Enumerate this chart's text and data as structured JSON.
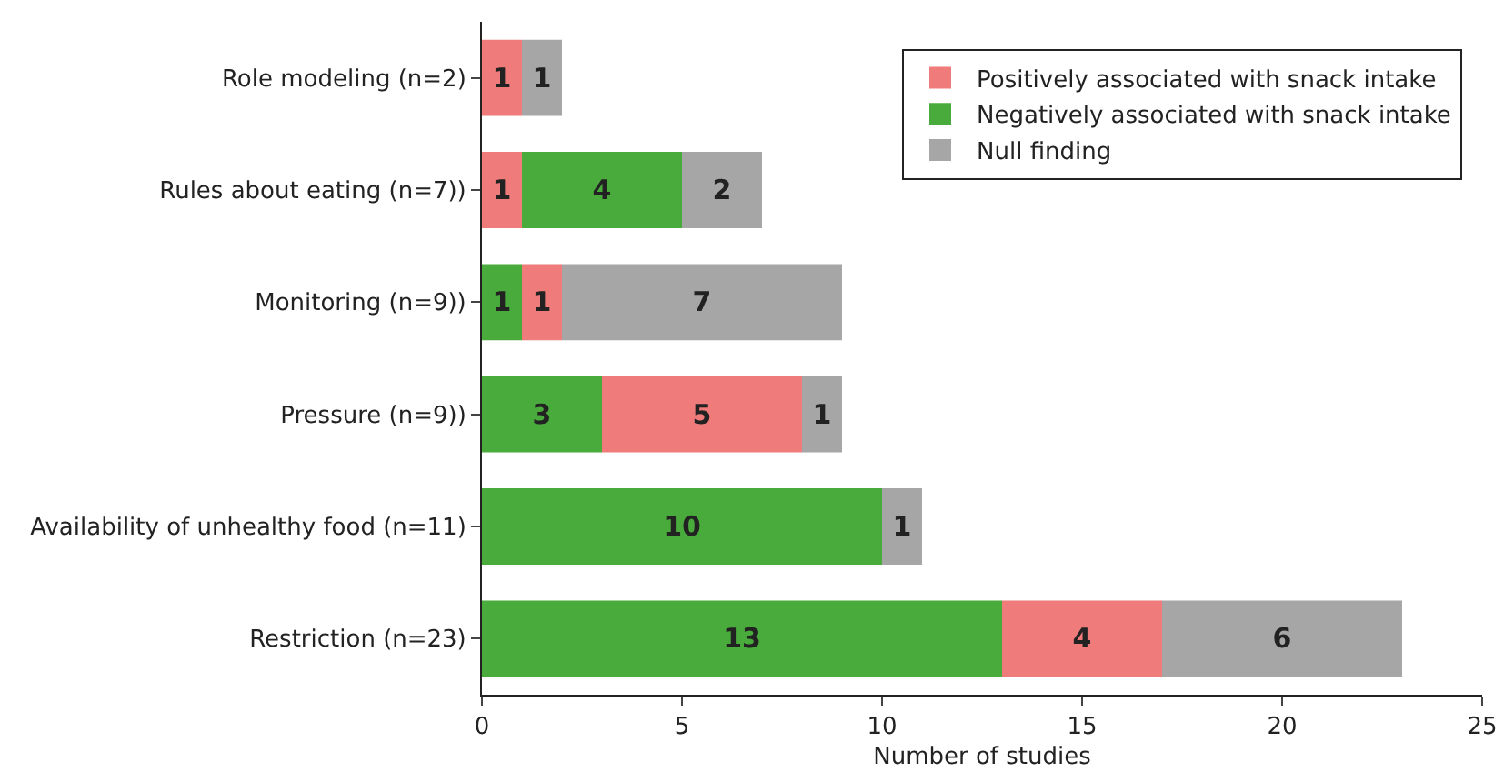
{
  "chart_data": {
    "type": "bar",
    "orientation": "horizontal",
    "xlabel": "Number of studies",
    "categories": [
      "Role modeling (n=2)",
      "Rules about eating (n=7))",
      "Monitoring (n=9))",
      "Pressure (n=9))",
      "Availability of unhealthy food (n=11)",
      "Restriction (n=23)"
    ],
    "series": [
      {
        "name": "Positively associated with snack intake",
        "color": "#f07b7b",
        "values": [
          1,
          1,
          1,
          5,
          null,
          4
        ],
        "base": [
          0,
          0,
          1,
          3,
          null,
          13
        ]
      },
      {
        "name": "Negatively associated with snack intake",
        "color": "#4aab3d",
        "values": [
          null,
          4,
          1,
          3,
          10,
          13
        ],
        "base": [
          null,
          1,
          0,
          0,
          0,
          0
        ]
      },
      {
        "name": "Null finding",
        "color": "#a6a6a6",
        "values": [
          1,
          2,
          7,
          1,
          1,
          6
        ],
        "base": [
          1,
          5,
          2,
          8,
          10,
          17
        ]
      }
    ],
    "xlim": [
      0,
      25
    ],
    "xticks": [
      0,
      5,
      10,
      15,
      20,
      25
    ],
    "grid": false,
    "legend": "top right",
    "data_labels": true
  }
}
